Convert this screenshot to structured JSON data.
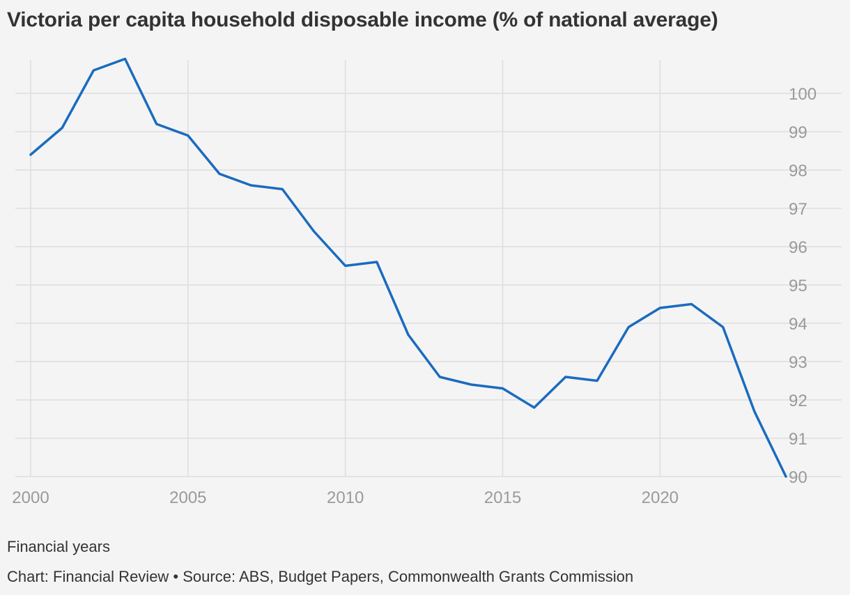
{
  "title": "Victoria per capita household disposable income (% of national average)",
  "x_note": "Financial years",
  "source": "Chart: Financial Review • Source: ABS, Budget Papers, Commonwealth Grants Commission",
  "colors": {
    "line": "#1a6bbf",
    "grid": "#dddddd",
    "axis_text": "#9a9a9a",
    "text": "#333333",
    "background": "#f4f4f4"
  },
  "chart_data": {
    "type": "line",
    "title": "Victoria per capita household disposable income (% of national average)",
    "xlabel": "Financial years",
    "ylabel": "",
    "x": [
      2000,
      2001,
      2002,
      2003,
      2004,
      2005,
      2006,
      2007,
      2008,
      2009,
      2010,
      2011,
      2012,
      2013,
      2014,
      2015,
      2016,
      2017,
      2018,
      2019,
      2020,
      2021,
      2022,
      2023,
      2024
    ],
    "series": [
      {
        "values": [
          98.4,
          99.1,
          100.6,
          100.9,
          99.2,
          98.9,
          97.9,
          97.6,
          97.5,
          96.4,
          95.5,
          95.6,
          93.7,
          92.6,
          92.4,
          92.3,
          91.8,
          92.6,
          92.5,
          93.9,
          94.4,
          94.5,
          93.9,
          91.7,
          90.0
        ]
      }
    ],
    "xlim": [
      2000,
      2024
    ],
    "ylim": [
      90,
      100.9
    ],
    "x_ticks": [
      "2000",
      "2005",
      "2010",
      "2015",
      "2020"
    ],
    "y_ticks": [
      "90",
      "91",
      "92",
      "93",
      "94",
      "95",
      "96",
      "97",
      "98",
      "99",
      "100"
    ],
    "y_axis_side": "right",
    "grid": true
  }
}
